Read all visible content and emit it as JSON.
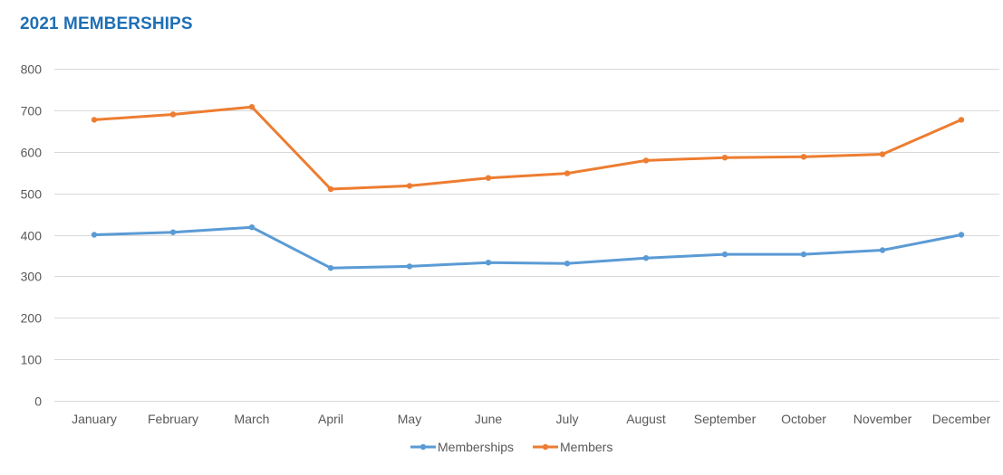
{
  "chart_data": {
    "type": "line",
    "title": "2021 MEMBERSHIPS",
    "categories": [
      "January",
      "February",
      "March",
      "April",
      "May",
      "June",
      "July",
      "August",
      "September",
      "October",
      "November",
      "December"
    ],
    "series": [
      {
        "name": "Memberships",
        "color": "#5B9BD5",
        "values": [
          400,
          406,
          418,
          320,
          324,
          333,
          331,
          344,
          353,
          353,
          363,
          400
        ]
      },
      {
        "name": "Members",
        "color": "#ED7D31",
        "values": [
          677,
          690,
          708,
          510,
          518,
          537,
          548,
          579,
          586,
          588,
          594,
          677
        ]
      }
    ],
    "xlabel": "",
    "ylabel": "",
    "ylim": [
      0,
      800
    ],
    "yticks": [
      "0",
      "100",
      "200",
      "300",
      "400",
      "500",
      "600",
      "700",
      "800"
    ],
    "grid": true,
    "legend_position": "bottom"
  }
}
